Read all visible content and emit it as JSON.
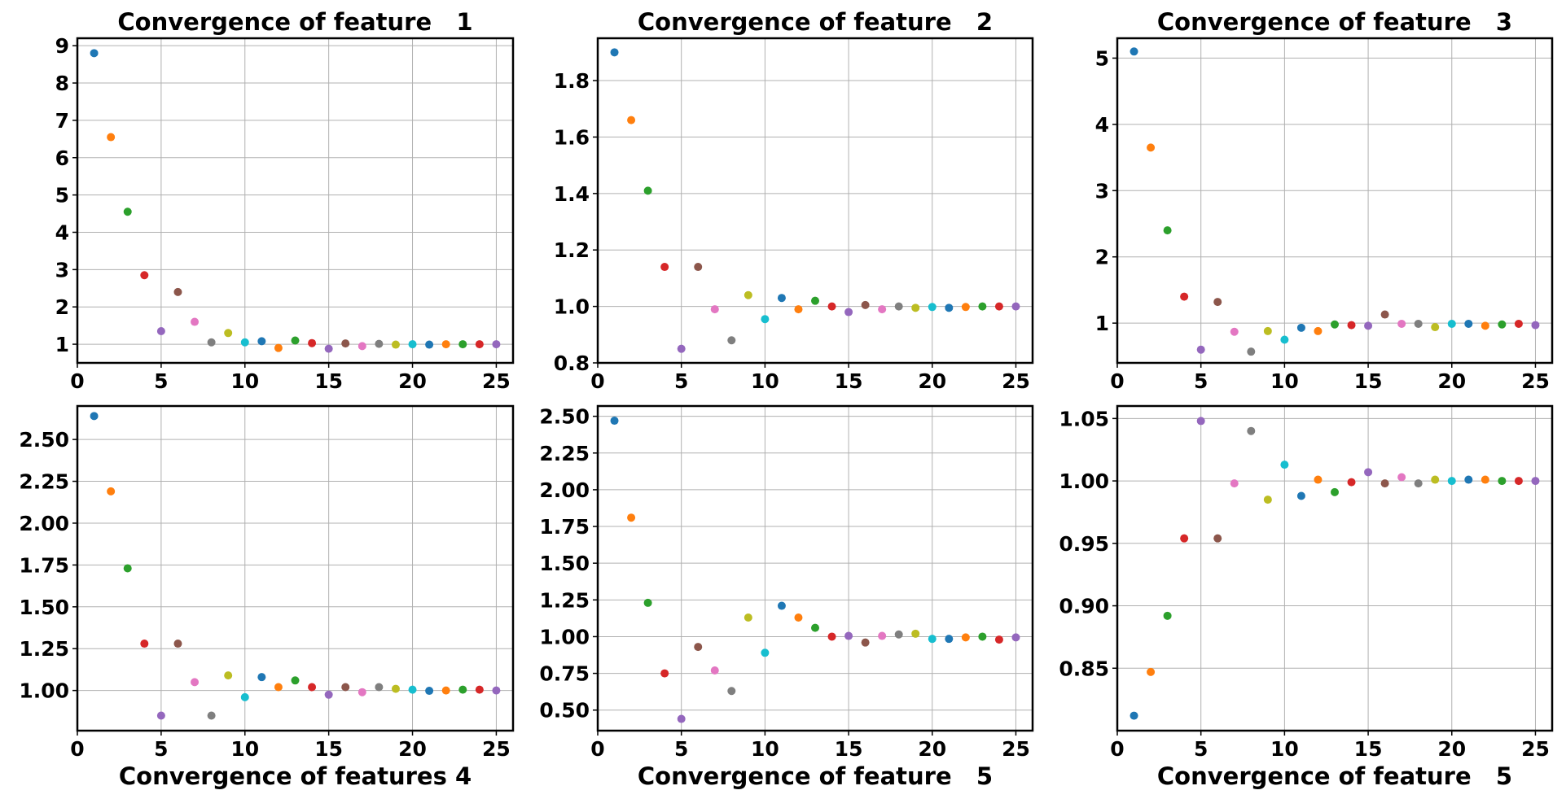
{
  "palette": [
    "#1f77b4",
    "#ff7f0e",
    "#2ca02c",
    "#d62728",
    "#9467bd",
    "#8c564b",
    "#e377c2",
    "#7f7f7f",
    "#bcbd22",
    "#17becf"
  ],
  "chart_data": [
    {
      "type": "scatter",
      "title": "Convergence of feature   1",
      "xlabel": "",
      "xlim": [
        0,
        26
      ],
      "ylim": [
        0.5,
        9.2
      ],
      "xticks": [
        0,
        5,
        10,
        15,
        20,
        25
      ],
      "yticks": [
        1,
        2,
        3,
        4,
        5,
        6,
        7,
        8,
        9
      ],
      "ytick_labels": [
        "1",
        "2",
        "3",
        "4",
        "5",
        "6",
        "7",
        "8",
        "9"
      ],
      "grid": true,
      "x": [
        1,
        2,
        3,
        4,
        5,
        6,
        7,
        8,
        9,
        10,
        11,
        12,
        13,
        14,
        15,
        16,
        17,
        18,
        19,
        20,
        21,
        22,
        23,
        24,
        25
      ],
      "y": [
        8.8,
        6.55,
        4.55,
        2.85,
        1.35,
        2.4,
        1.6,
        1.05,
        1.3,
        1.05,
        1.08,
        0.9,
        1.1,
        1.03,
        0.88,
        1.02,
        0.95,
        1.01,
        0.99,
        1.0,
        0.99,
        1.0,
        1.0,
        1.0,
        1.0
      ]
    },
    {
      "type": "scatter",
      "title": "Convergence of feature   2",
      "xlabel": "",
      "xlim": [
        0,
        26
      ],
      "ylim": [
        0.8,
        1.95
      ],
      "xticks": [
        0,
        5,
        10,
        15,
        20,
        25
      ],
      "yticks": [
        0.8,
        1.0,
        1.2,
        1.4,
        1.6,
        1.8
      ],
      "ytick_labels": [
        "0.8",
        "1.0",
        "1.2",
        "1.4",
        "1.6",
        "1.8"
      ],
      "grid": true,
      "x": [
        1,
        2,
        3,
        4,
        5,
        6,
        7,
        8,
        9,
        10,
        11,
        12,
        13,
        14,
        15,
        16,
        17,
        18,
        19,
        20,
        21,
        22,
        23,
        24,
        25
      ],
      "y": [
        1.9,
        1.66,
        1.41,
        1.14,
        0.85,
        1.14,
        0.99,
        0.88,
        1.04,
        0.955,
        1.03,
        0.99,
        1.02,
        1.0,
        0.98,
        1.005,
        0.99,
        1.0,
        0.995,
        0.998,
        0.995,
        0.998,
        1.0,
        1.0,
        1.0
      ]
    },
    {
      "type": "scatter",
      "title": "Convergence of feature   3",
      "xlabel": "",
      "xlim": [
        0,
        26
      ],
      "ylim": [
        0.4,
        5.3
      ],
      "xticks": [
        0,
        5,
        10,
        15,
        20,
        25
      ],
      "yticks": [
        1,
        2,
        3,
        4,
        5
      ],
      "ytick_labels": [
        "1",
        "2",
        "3",
        "4",
        "5"
      ],
      "grid": true,
      "x": [
        1,
        2,
        3,
        4,
        5,
        6,
        7,
        8,
        9,
        10,
        11,
        12,
        13,
        14,
        15,
        16,
        17,
        18,
        19,
        20,
        21,
        22,
        23,
        24,
        25
      ],
      "y": [
        5.1,
        3.65,
        2.4,
        1.4,
        0.6,
        1.32,
        0.87,
        0.57,
        0.88,
        0.75,
        0.93,
        0.88,
        0.98,
        0.97,
        0.96,
        1.13,
        0.99,
        0.99,
        0.94,
        0.99,
        0.99,
        0.96,
        0.98,
        0.99,
        0.97
      ]
    },
    {
      "type": "scatter",
      "title": "",
      "xlabel": "Convergence of features 4",
      "xlim": [
        0,
        26
      ],
      "ylim": [
        0.76,
        2.7
      ],
      "xticks": [
        0,
        5,
        10,
        15,
        20,
        25
      ],
      "yticks": [
        1.0,
        1.25,
        1.5,
        1.75,
        2.0,
        2.25,
        2.5
      ],
      "ytick_labels": [
        "1.00",
        "1.25",
        "1.50",
        "1.75",
        "2.00",
        "2.25",
        "2.50"
      ],
      "grid": true,
      "x": [
        1,
        2,
        3,
        4,
        5,
        6,
        7,
        8,
        9,
        10,
        11,
        12,
        13,
        14,
        15,
        16,
        17,
        18,
        19,
        20,
        21,
        22,
        23,
        24,
        25
      ],
      "y": [
        2.64,
        2.19,
        1.73,
        1.28,
        0.85,
        1.28,
        1.05,
        0.85,
        1.09,
        0.96,
        1.08,
        1.02,
        1.06,
        1.02,
        0.975,
        1.02,
        0.99,
        1.02,
        1.01,
        1.005,
        0.998,
        1.0,
        1.005,
        1.005,
        1.0
      ]
    },
    {
      "type": "scatter",
      "title": "",
      "xlabel": "Convergence of feature   5",
      "xlim": [
        0,
        26
      ],
      "ylim": [
        0.36,
        2.57
      ],
      "xticks": [
        0,
        5,
        10,
        15,
        20,
        25
      ],
      "yticks": [
        0.5,
        0.75,
        1.0,
        1.25,
        1.5,
        1.75,
        2.0,
        2.25,
        2.5
      ],
      "ytick_labels": [
        "0.50",
        "0.75",
        "1.00",
        "1.25",
        "1.50",
        "1.75",
        "2.00",
        "2.25",
        "2.50"
      ],
      "grid": true,
      "x": [
        1,
        2,
        3,
        4,
        5,
        6,
        7,
        8,
        9,
        10,
        11,
        12,
        13,
        14,
        15,
        16,
        17,
        18,
        19,
        20,
        21,
        22,
        23,
        24,
        25
      ],
      "y": [
        2.47,
        1.81,
        1.23,
        0.75,
        0.44,
        0.93,
        0.77,
        0.63,
        1.13,
        0.89,
        1.21,
        1.13,
        1.06,
        1.0,
        1.005,
        0.96,
        1.005,
        1.015,
        1.02,
        0.985,
        0.985,
        0.995,
        1.0,
        0.98,
        0.995
      ]
    },
    {
      "type": "scatter",
      "title": "",
      "xlabel": "Convergence of feature   5",
      "xlim": [
        0,
        26
      ],
      "ylim": [
        0.8,
        1.06
      ],
      "xticks": [
        0,
        5,
        10,
        15,
        20,
        25
      ],
      "yticks": [
        0.85,
        0.9,
        0.95,
        1.0,
        1.05
      ],
      "ytick_labels": [
        "0.85",
        "0.90",
        "0.95",
        "1.00",
        "1.05"
      ],
      "grid": true,
      "x": [
        1,
        2,
        3,
        4,
        5,
        6,
        7,
        8,
        9,
        10,
        11,
        12,
        13,
        14,
        15,
        16,
        17,
        18,
        19,
        20,
        21,
        22,
        23,
        24,
        25
      ],
      "y": [
        0.812,
        0.847,
        0.892,
        0.954,
        1.048,
        0.954,
        0.998,
        1.04,
        0.985,
        1.013,
        0.988,
        1.001,
        0.991,
        0.999,
        1.007,
        0.998,
        1.003,
        0.998,
        1.001,
        1.0,
        1.001,
        1.001,
        1.0,
        1.0,
        1.0
      ]
    }
  ]
}
